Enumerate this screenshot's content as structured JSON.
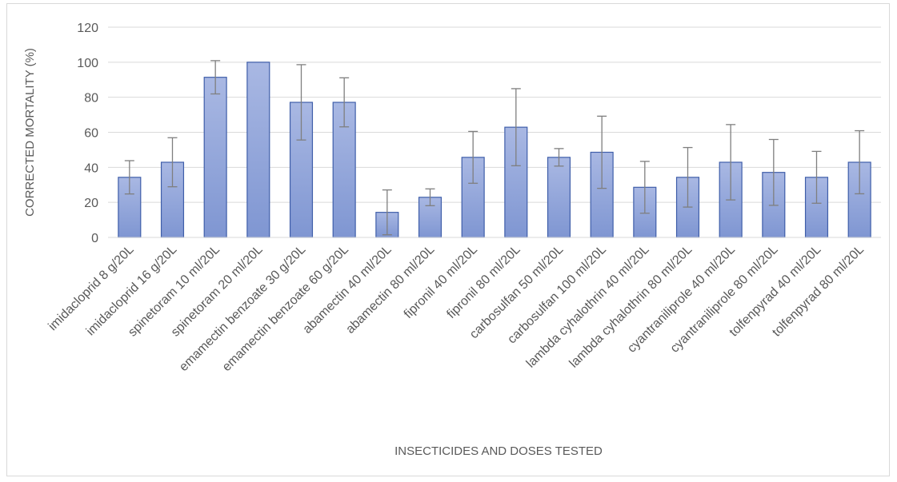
{
  "chart_data": {
    "type": "bar",
    "title": "",
    "xlabel": "INSECTICIDES AND DOSES TESTED",
    "ylabel": "CORRECTED MORTALITY (%)",
    "ylim": [
      0,
      120
    ],
    "yticks": [
      "0",
      "20",
      "40",
      "60",
      "80",
      "100",
      "120"
    ],
    "grid": "horizontal",
    "legend": "none",
    "bar_color": "#8ea3d8",
    "bar_edge_color": "#3f5ea9",
    "error_bar_color": "#7f7f7f",
    "categories": [
      "imidacloprid 8 g/20L",
      "imidacloprid 16 g/20L",
      "spinetoram 10 ml/20L",
      "spinetoram 20 ml/20L",
      "emamectin benzoate 30 g/20L",
      "emamectin benzoate 60 g/20L",
      "abamectin 40 ml/20L",
      "abamectin 80 ml/20L",
      "fipronil 40 ml/20L",
      "fipronil 80 ml/20L",
      "carbosulfan 50 ml/20L",
      "carbosulfan 100 ml/20L",
      "lambda cyhalothrin 40 ml/20L",
      "lambda cyhalothrin 80 ml/20L",
      "cyantraniliprole 40 ml/20L",
      "cyantraniliprole 80 ml/20L",
      "tolfenpyrad 40 ml/20L",
      "tolfenpyrad 80 ml/20L"
    ],
    "values": [
      34.3,
      42.9,
      91.4,
      100,
      77.1,
      77.1,
      14.3,
      22.9,
      45.7,
      62.9,
      45.7,
      48.6,
      28.6,
      34.3,
      42.9,
      37.1,
      34.3,
      42.9
    ],
    "error": [
      9.5,
      14,
      9.5,
      0,
      21.5,
      14,
      12.8,
      4.8,
      14.8,
      22,
      5,
      20.6,
      14.8,
      17,
      21.5,
      18.8,
      14.8,
      18
    ]
  }
}
